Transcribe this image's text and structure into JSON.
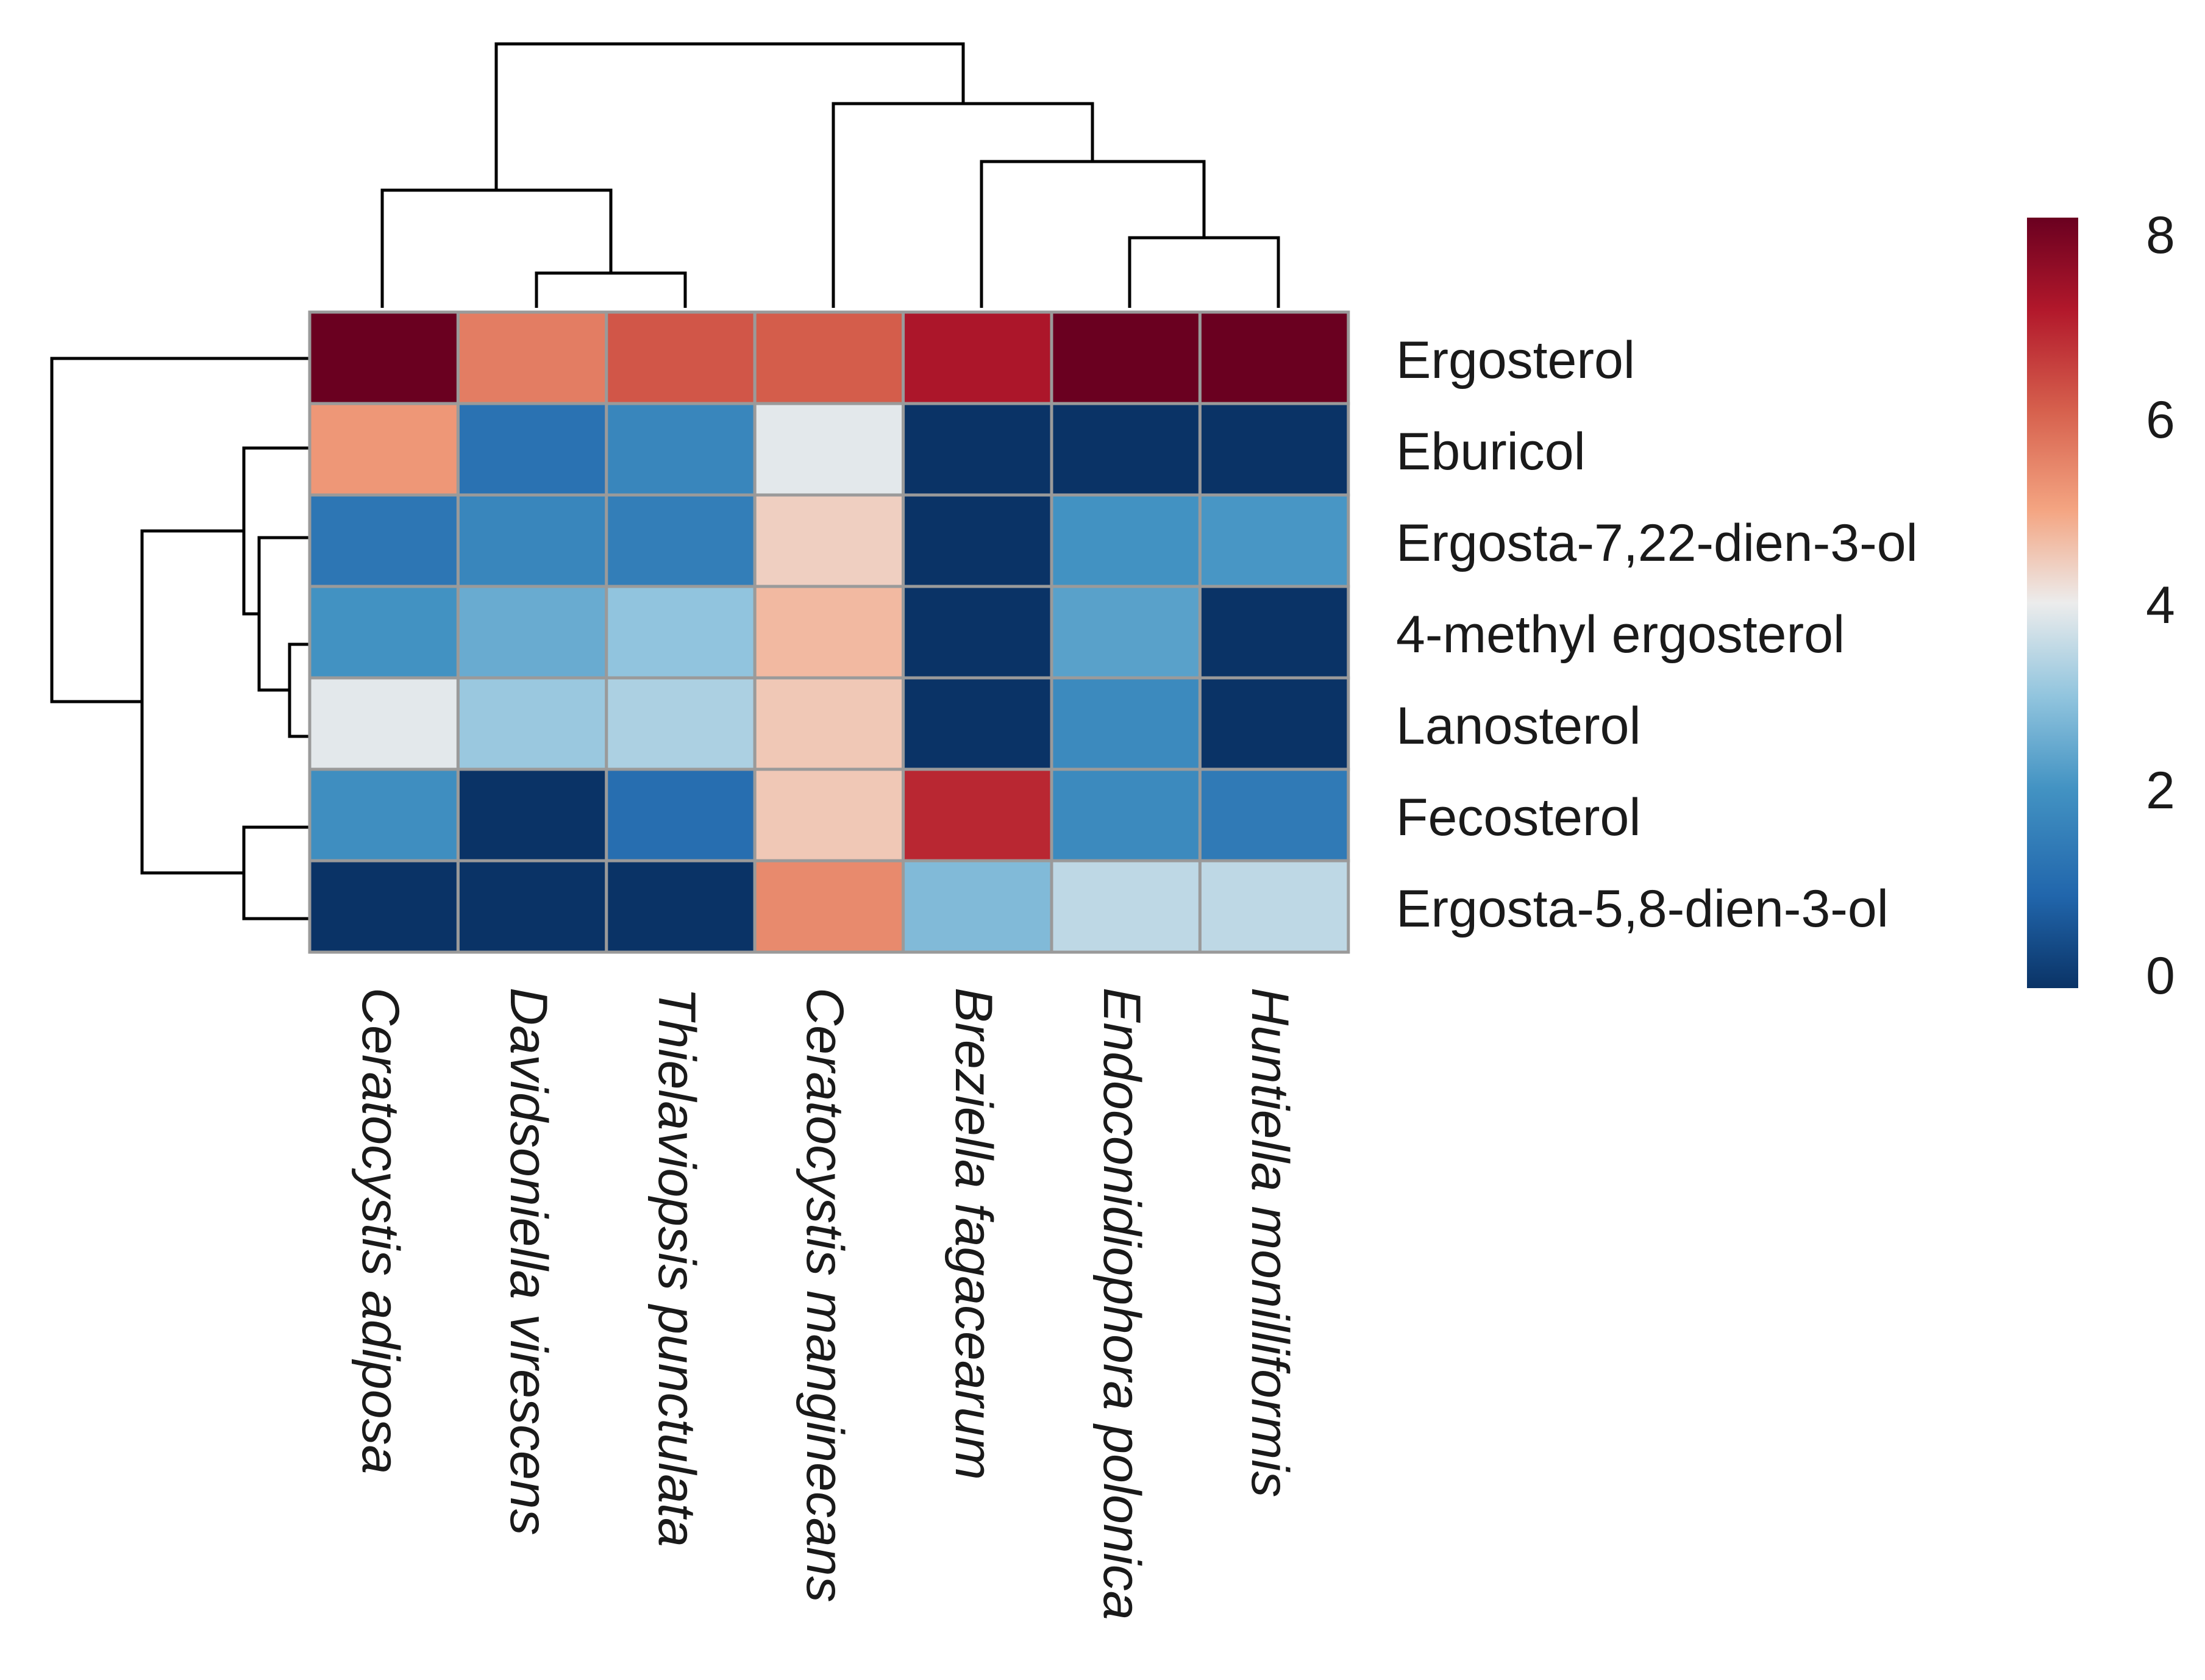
{
  "chart_data": {
    "type": "heatmap",
    "title": "",
    "rows": [
      "Ergosterol",
      "Eburicol",
      "Ergosta-7,22-dien-3-ol",
      "4-methyl ergosterol",
      "Lanosterol",
      "Fecosterol",
      "Ergosta-5,8-dien-3-ol"
    ],
    "columns": [
      "Ceratocystis adiposa",
      "Davidsoniella virescens",
      "Thielaviopsis punctulata",
      "Ceratocystis manginecans",
      "Breziella fagacearum",
      "Endoconidiophora polonica",
      "Huntiella monilliformis"
    ],
    "values": [
      [
        8.2,
        5.7,
        6.3,
        6.2,
        7.3,
        8.2,
        8.2
      ],
      [
        5.3,
        1.3,
        1.8,
        4.0,
        0.0,
        0.0,
        0.0
      ],
      [
        1.4,
        1.8,
        1.6,
        4.5,
        0.0,
        2.1,
        2.2
      ],
      [
        2.1,
        2.6,
        3.1,
        4.8,
        0.0,
        2.4,
        0.0
      ],
      [
        4.0,
        3.2,
        3.4,
        4.6,
        0.0,
        1.9,
        0.0
      ],
      [
        2.0,
        0.0,
        1.2,
        4.6,
        7.0,
        1.9,
        1.5
      ],
      [
        0.0,
        0.0,
        0.0,
        5.5,
        2.9,
        3.6,
        3.6
      ]
    ],
    "colorscale": {
      "min": 0,
      "max": 8.2,
      "low_color": "#0a3366",
      "mid_color": "#ececec",
      "high_color": "#6a0020",
      "ticks": [
        0,
        2,
        4,
        6,
        8
      ]
    },
    "column_dendrogram": "((Ceratocystis adiposa,(Davidsoniella virescens,Thielaviopsis punctulata)),(Ceratocystis manginecans,(Breziella fagacearum,(Endoconidiophora polonica,Huntiella monilliformis))))",
    "row_dendrogram": "(Ergosterol,((Eburicol,(Ergosta-7,22-dien-3-ol,(4-methyl ergosterol,Lanosterol))),(Fecosterol,Ergosta-5,8-dien-3-ol)))",
    "legend": "right"
  }
}
